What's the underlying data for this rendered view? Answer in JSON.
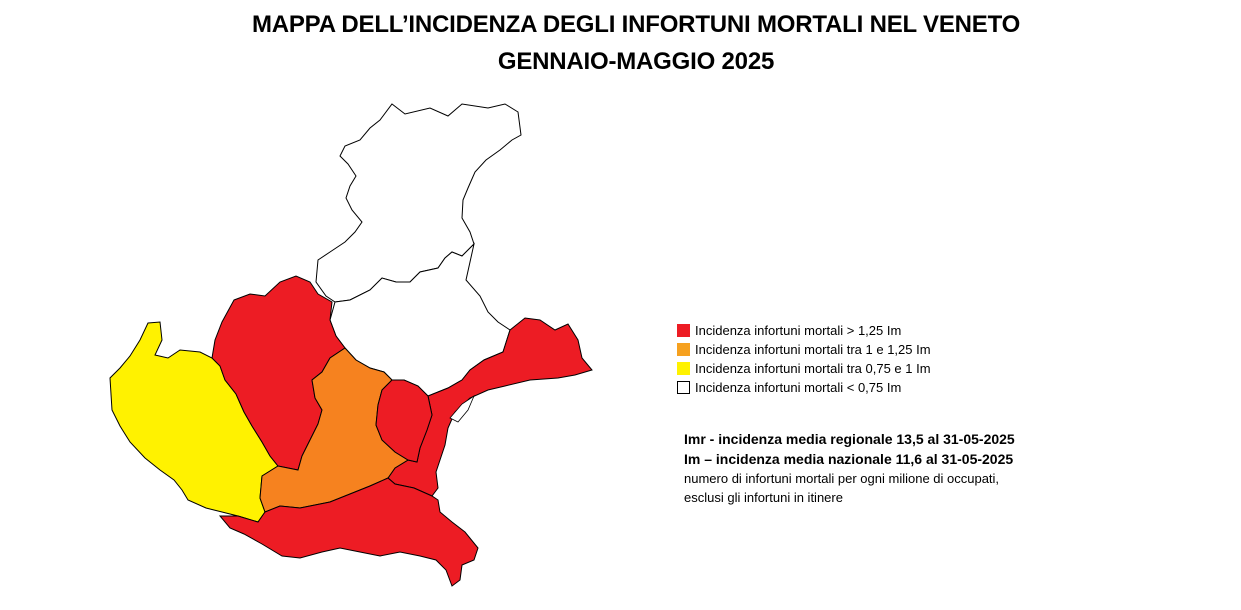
{
  "title": {
    "line1": "MAPPA DELL’INCIDENZA DEGLI INFORTUNI MORTALI NEL VENETO",
    "line2": "GENNAIO-MAGGIO 2025"
  },
  "colors": {
    "red": "#ed1c24",
    "orange": "#f6821f",
    "yellow": "#fff200",
    "white": "#ffffff",
    "border": "#000000"
  },
  "legend": [
    {
      "label": "Incidenza infortuni mortali > 1,25 Im",
      "color": "#ed1c24"
    },
    {
      "label": "Incidenza infortuni mortali tra 1 e 1,25 Im",
      "color": "#f6821f"
    },
    {
      "label": "Incidenza infortuni mortali tra 0,75 e 1 Im",
      "color": "#fff200"
    },
    {
      "label": "Incidenza infortuni mortali < 0,75 Im",
      "color": "#ffffff"
    }
  ],
  "notes": {
    "imr": "Imr - incidenza media regionale 13,5 al 31-05-2025",
    "im": "Im – incidenza media nazionale 11,6 al 31-05-2025",
    "desc1": "numero di infortuni mortali per ogni milione di occupati,",
    "desc2": "esclusi gli infortuni in itinere"
  }
}
